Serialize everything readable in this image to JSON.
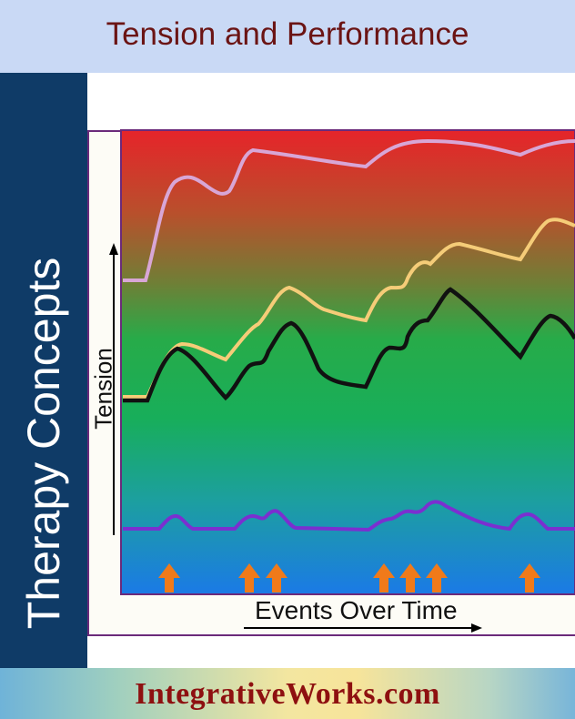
{
  "header": {
    "title": "Tension and Performance"
  },
  "sidebar": {
    "title": "Therapy Concepts"
  },
  "footer": {
    "brand": "IntegrativeWorks.com"
  },
  "colors": {
    "header_bg": "#c9d9f5",
    "title_text": "#6b1414",
    "sidebar_bg": "#0f3b67",
    "brand_text": "#8e1010",
    "curve_top": "#d8a6d6",
    "curve_upper": "#f5cc78",
    "curve_middle": "#111111",
    "curve_bottom": "#7b2fd0",
    "event_arrow": "#f07a1a"
  },
  "chart_data": {
    "type": "line",
    "title": "",
    "xlabel": "Events Over Time",
    "ylabel": "Tension",
    "background": "gradient from red (high tension) through green to blue (low tension)",
    "series": [
      {
        "name": "top curve (lavender)",
        "color": "#d8a6d6"
      },
      {
        "name": "upper curve (yellow)",
        "color": "#f5cc78"
      },
      {
        "name": "middle curve (black)",
        "color": "#111111"
      },
      {
        "name": "baseline curve (purple)",
        "color": "#7b2fd0"
      }
    ],
    "events": {
      "count": 7,
      "marker": "up-arrow",
      "color": "#f07a1a"
    }
  }
}
